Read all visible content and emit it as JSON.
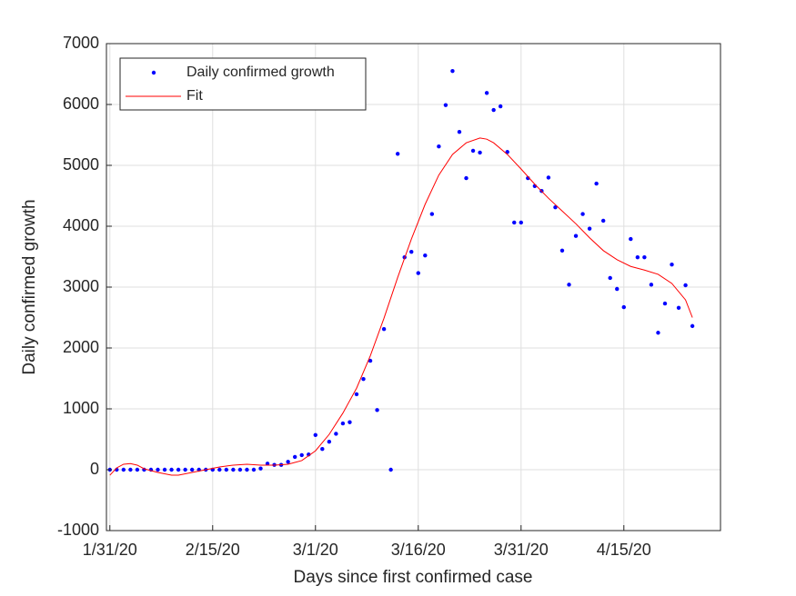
{
  "chart_data": {
    "type": "scatter-fit",
    "xlabel": "Days since first confirmed case",
    "ylabel": "Daily confirmed growth",
    "xlim": [
      -0.5,
      89.1
    ],
    "ylim": [
      -1000,
      7000
    ],
    "xticks": [
      {
        "value": 0,
        "label": "1/31/20"
      },
      {
        "value": 15,
        "label": "2/15/20"
      },
      {
        "value": 30,
        "label": "3/1/20"
      },
      {
        "value": 45,
        "label": "3/16/20"
      },
      {
        "value": 60,
        "label": "3/31/20"
      },
      {
        "value": 75,
        "label": "4/15/20"
      }
    ],
    "yticks": [
      -1000,
      0,
      1000,
      2000,
      3000,
      4000,
      5000,
      6000,
      7000
    ],
    "grid": true,
    "legend": "upper left",
    "series": [
      {
        "name": "Daily confirmed growth",
        "color": "#0000ff",
        "style": "markers",
        "x": [
          0,
          1,
          2,
          3,
          4,
          5,
          6,
          7,
          8,
          9,
          10,
          11,
          12,
          13,
          14,
          15,
          16,
          17,
          18,
          19,
          20,
          21,
          22,
          23,
          24,
          25,
          26,
          27,
          28,
          29,
          30,
          31,
          32,
          33,
          34,
          35,
          36,
          37,
          38,
          39,
          40,
          41,
          42,
          43,
          44,
          45,
          46,
          47,
          48,
          49,
          50,
          51,
          52,
          53,
          54,
          55,
          56,
          57,
          58,
          59,
          60,
          61,
          62,
          63,
          64,
          65,
          66,
          67,
          68,
          69,
          70,
          71,
          72,
          73,
          74,
          75,
          76,
          77,
          78,
          79,
          80,
          81,
          82,
          83,
          84,
          85
        ],
        "values": [
          0,
          0,
          0,
          0,
          0,
          0,
          0,
          0,
          0,
          0,
          0,
          0,
          0,
          0,
          0,
          0,
          0,
          0,
          0,
          0,
          0,
          0,
          20,
          100,
          80,
          80,
          130,
          210,
          240,
          250,
          570,
          340,
          460,
          590,
          760,
          780,
          1240,
          1490,
          1790,
          980,
          2310,
          0,
          5190,
          3490,
          3580,
          3230,
          3520,
          4200,
          5310,
          5990,
          6550,
          5550,
          4790,
          5240,
          5210,
          6190,
          5910,
          5970,
          5220,
          4060,
          4060,
          4790,
          4660,
          4580,
          4800,
          4310,
          3600,
          3040,
          3840,
          4200,
          3960,
          4700,
          4090,
          3150,
          2970,
          2670,
          3790,
          3490,
          3490,
          3040,
          2250,
          2730,
          3370,
          2660,
          3030,
          2360
        ]
      },
      {
        "name": "Fit",
        "color": "#ff0000",
        "style": "line",
        "x": [
          0,
          1,
          2,
          3,
          4,
          5,
          7,
          9,
          10,
          12,
          14,
          16,
          18,
          20,
          22,
          24,
          26,
          28,
          30,
          32,
          34,
          36,
          38,
          40,
          42,
          44,
          46,
          48,
          50,
          52,
          54,
          55,
          56,
          58,
          60,
          62,
          64,
          66,
          68,
          70,
          72,
          74,
          76,
          78,
          80,
          82,
          84,
          85
        ],
        "values": [
          -90,
          30,
          90,
          100,
          75,
          15,
          -45,
          -90,
          -90,
          -45,
          0,
          45,
          75,
          90,
          75,
          75,
          90,
          150,
          310,
          580,
          930,
          1340,
          1870,
          2490,
          3160,
          3790,
          4360,
          4840,
          5180,
          5370,
          5450,
          5430,
          5370,
          5180,
          4940,
          4690,
          4460,
          4250,
          4040,
          3810,
          3600,
          3450,
          3340,
          3280,
          3210,
          3060,
          2790,
          2500
        ]
      }
    ]
  }
}
